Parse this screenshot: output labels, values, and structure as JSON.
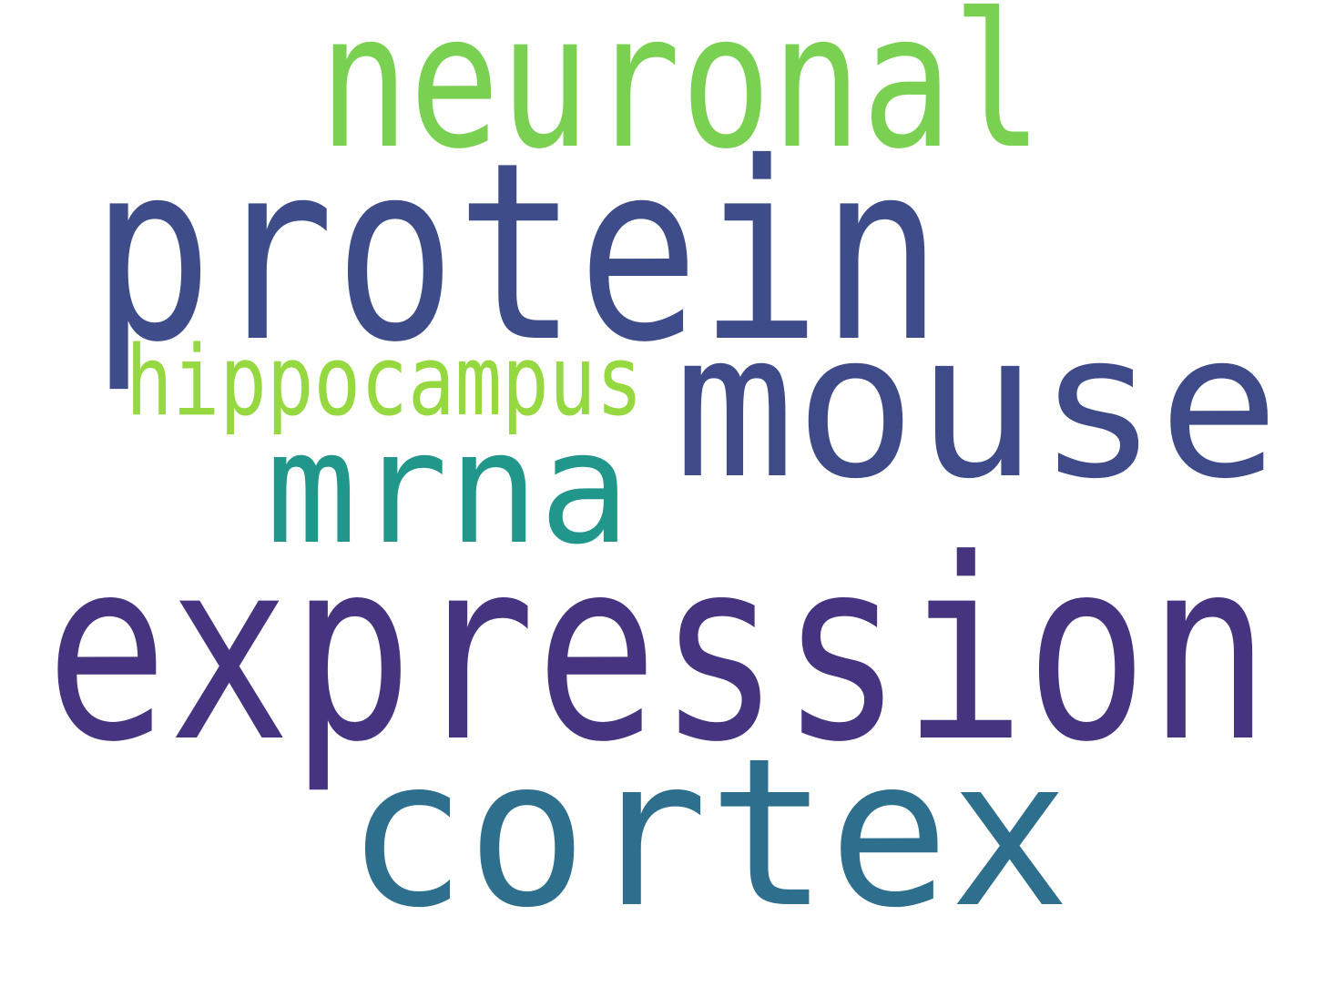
{
  "words": [
    {
      "key": "neuronal",
      "text": "neuronal",
      "color": "#7ad151"
    },
    {
      "key": "protein",
      "text": "protein",
      "color": "#3e4c8a"
    },
    {
      "key": "mouse",
      "text": "mouse",
      "color": "#3f4a89"
    },
    {
      "key": "hippocampus",
      "text": "hippocampus",
      "color": "#95d840"
    },
    {
      "key": "mrna",
      "text": "mrna",
      "color": "#21978c"
    },
    {
      "key": "expression",
      "text": "expression",
      "color": "#463480"
    },
    {
      "key": "cortex",
      "text": "cortex",
      "color": "#2e6f8e"
    }
  ]
}
